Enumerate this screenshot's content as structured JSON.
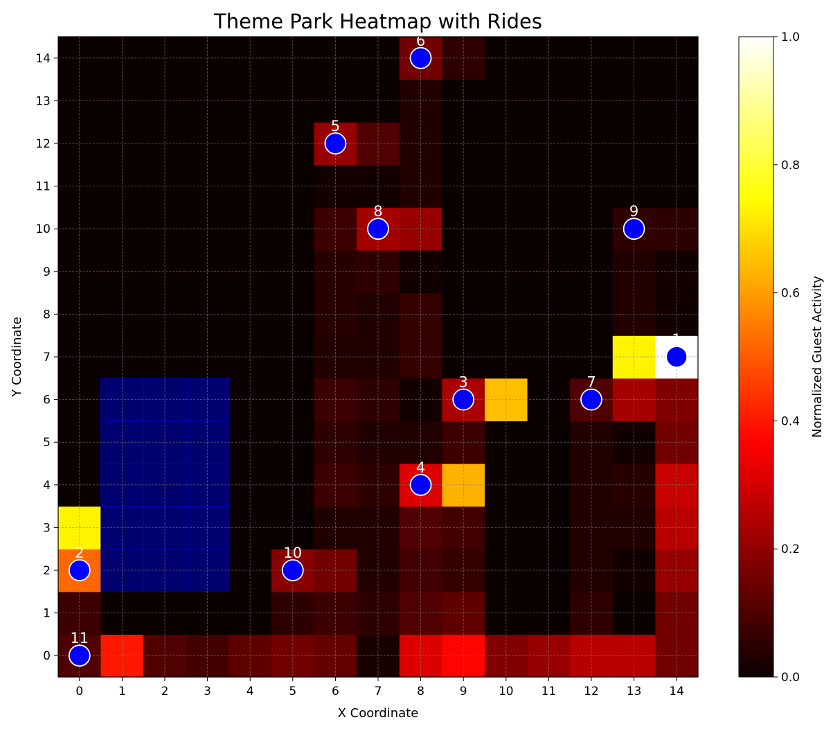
{
  "chart_data": {
    "type": "heatmap",
    "title": "Theme Park Heatmap with Rides",
    "xlabel": "X Coordinate",
    "ylabel": "Y Coordinate",
    "x_ticks": [
      0,
      1,
      2,
      3,
      4,
      5,
      6,
      7,
      8,
      9,
      10,
      11,
      12,
      13,
      14
    ],
    "y_ticks": [
      0,
      1,
      2,
      3,
      4,
      5,
      6,
      7,
      8,
      9,
      10,
      11,
      12,
      13,
      14
    ],
    "xlim": [
      -0.5,
      14.5
    ],
    "ylim": [
      -0.5,
      14.5
    ],
    "grid": true,
    "colormap": "hot",
    "colorbar": {
      "label": "Normalized Guest Activity",
      "range": [
        0.0,
        1.0
      ],
      "ticks": [
        0.0,
        0.2,
        0.4,
        0.6,
        0.8,
        1.0
      ],
      "tick_labels": [
        "0.0",
        "0.2",
        "0.4",
        "0.6",
        "0.8",
        "1.0"
      ]
    },
    "grid_values": [
      [
        0.1,
        0.4,
        0.1,
        0.08,
        0.12,
        0.15,
        0.13,
        0.02,
        0.3,
        0.37,
        0.17,
        0.2,
        0.25,
        0.25,
        0.15
      ],
      [
        0.07,
        0.0,
        0.0,
        0.0,
        0.0,
        0.05,
        0.07,
        0.05,
        0.1,
        0.12,
        0.0,
        0.0,
        0.05,
        0.0,
        0.15
      ],
      [
        0.52,
        0.0,
        0.0,
        0.0,
        0.0,
        0.18,
        0.15,
        0.03,
        0.08,
        0.06,
        0.0,
        0.0,
        0.03,
        0.01,
        0.2
      ],
      [
        0.73,
        0.0,
        0.0,
        0.0,
        0.0,
        0.0,
        0.03,
        0.03,
        0.1,
        0.08,
        0.0,
        0.0,
        0.03,
        0.03,
        0.25
      ],
      [
        0.0,
        0.0,
        0.0,
        0.0,
        0.0,
        0.0,
        0.07,
        0.05,
        0.3,
        0.63,
        0.0,
        0.0,
        0.03,
        0.04,
        0.27
      ],
      [
        0.0,
        0.0,
        0.0,
        0.0,
        0.0,
        0.0,
        0.05,
        0.03,
        0.03,
        0.07,
        0.0,
        0.0,
        0.03,
        0.01,
        0.15
      ],
      [
        0.0,
        0.0,
        0.0,
        0.0,
        0.0,
        0.0,
        0.07,
        0.05,
        0.01,
        0.23,
        0.65,
        0.0,
        0.1,
        0.22,
        0.17
      ],
      [
        0.0,
        0.0,
        0.0,
        0.0,
        0.0,
        0.0,
        0.03,
        0.03,
        0.06,
        0.0,
        0.0,
        0.0,
        0.0,
        0.73,
        1.0
      ],
      [
        0.0,
        0.0,
        0.0,
        0.0,
        0.0,
        0.0,
        0.04,
        0.03,
        0.06,
        0.0,
        0.0,
        0.0,
        0.0,
        0.03,
        0.01
      ],
      [
        0.0,
        0.0,
        0.0,
        0.0,
        0.0,
        0.0,
        0.04,
        0.05,
        0.01,
        0.0,
        0.0,
        0.0,
        0.0,
        0.03,
        0.01
      ],
      [
        0.0,
        0.0,
        0.0,
        0.0,
        0.0,
        0.0,
        0.07,
        0.22,
        0.2,
        0.0,
        0.0,
        0.0,
        0.0,
        0.05,
        0.05
      ],
      [
        0.0,
        0.0,
        0.0,
        0.0,
        0.0,
        0.0,
        0.01,
        0.01,
        0.03,
        0.0,
        0.0,
        0.0,
        0.0,
        0.0,
        0.0
      ],
      [
        0.0,
        0.0,
        0.0,
        0.0,
        0.0,
        0.0,
        0.2,
        0.1,
        0.03,
        0.0,
        0.0,
        0.0,
        0.0,
        0.0,
        0.0
      ],
      [
        0.0,
        0.0,
        0.0,
        0.0,
        0.0,
        0.0,
        0.0,
        0.0,
        0.03,
        0.0,
        0.0,
        0.0,
        0.0,
        0.0,
        0.0
      ],
      [
        0.0,
        0.0,
        0.0,
        0.0,
        0.0,
        0.0,
        0.0,
        0.0,
        0.15,
        0.05,
        0.0,
        0.0,
        0.0,
        0.0,
        0.0
      ]
    ],
    "water_region": {
      "x_range": [
        1,
        3
      ],
      "y_range": [
        2,
        6
      ],
      "color": "#00006e"
    },
    "rides": [
      {
        "label": "1",
        "x": 14,
        "y": 7
      },
      {
        "label": "2",
        "x": 0,
        "y": 2
      },
      {
        "label": "3",
        "x": 9,
        "y": 6
      },
      {
        "label": "4",
        "x": 8,
        "y": 4
      },
      {
        "label": "5",
        "x": 6,
        "y": 12
      },
      {
        "label": "6",
        "x": 8,
        "y": 14
      },
      {
        "label": "7",
        "x": 12,
        "y": 6
      },
      {
        "label": "8",
        "x": 7,
        "y": 10
      },
      {
        "label": "9",
        "x": 13,
        "y": 10
      },
      {
        "label": "10",
        "x": 5,
        "y": 2
      },
      {
        "label": "11",
        "x": 0,
        "y": 0
      }
    ],
    "ride_marker_color": "#0000ff"
  }
}
